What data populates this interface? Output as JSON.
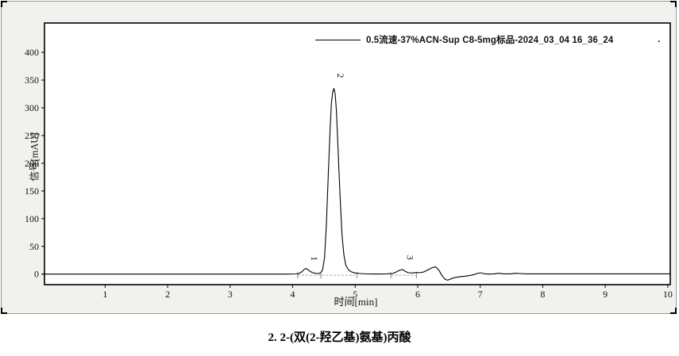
{
  "figure": {
    "caption": "2. 2-(双(2-羟乙基)氨基)丙酸"
  },
  "colors": {
    "panel_bg": "#f1f1ee",
    "plot_bg": "#ffffff",
    "plot_border": "#000000",
    "trace": "#000000",
    "baseline_dash": "#a8a8a8",
    "integration_mark": "#8a8a8a",
    "text": "#111111"
  },
  "chart_data": {
    "type": "line",
    "title": "",
    "xlabel": "时间[min]",
    "ylabel": "信号[mAU]",
    "xlim": [
      0.03,
      10.04
    ],
    "ylim": [
      -19,
      453
    ],
    "x_ticks": [
      1,
      2,
      3,
      4,
      5,
      6,
      7,
      8,
      9,
      10
    ],
    "y_ticks": [
      0,
      50,
      100,
      150,
      200,
      250,
      300,
      350,
      400
    ],
    "grid": "off",
    "legend": {
      "position": "top-right-inside",
      "label": "0.5流速-37%ACN-Sup C8-5mg标品-2024_03_04 16_36_24",
      "suffix_dot": "."
    },
    "series": [
      {
        "name": "0.5流速-37%ACN-Sup C8-5mg标品-2024_03_04 16_36_24",
        "color": "#000000",
        "points": [
          [
            0,
            0
          ],
          [
            0.5,
            0
          ],
          [
            1,
            0
          ],
          [
            1.5,
            0
          ],
          [
            2,
            0
          ],
          [
            2.5,
            0
          ],
          [
            3,
            0
          ],
          [
            3.5,
            0
          ],
          [
            3.9,
            0
          ],
          [
            4.05,
            0.3
          ],
          [
            4.1,
            1
          ],
          [
            4.15,
            4.5
          ],
          [
            4.19,
            9
          ],
          [
            4.22,
            10
          ],
          [
            4.26,
            6.5
          ],
          [
            4.31,
            3
          ],
          [
            4.36,
            1.5
          ],
          [
            4.41,
            1
          ],
          [
            4.45,
            2.5
          ],
          [
            4.48,
            8
          ],
          [
            4.51,
            30
          ],
          [
            4.54,
            90
          ],
          [
            4.57,
            180
          ],
          [
            4.6,
            265
          ],
          [
            4.62,
            308
          ],
          [
            4.64,
            328
          ],
          [
            4.66,
            335
          ],
          [
            4.68,
            324
          ],
          [
            4.7,
            295
          ],
          [
            4.73,
            215
          ],
          [
            4.76,
            135
          ],
          [
            4.79,
            70
          ],
          [
            4.82,
            34
          ],
          [
            4.85,
            16
          ],
          [
            4.89,
            8
          ],
          [
            4.94,
            4
          ],
          [
            5.0,
            2
          ],
          [
            5.08,
            1
          ],
          [
            5.2,
            0.3
          ],
          [
            5.35,
            0.2
          ],
          [
            5.5,
            0.5
          ],
          [
            5.6,
            1
          ],
          [
            5.66,
            4
          ],
          [
            5.72,
            7.5
          ],
          [
            5.76,
            8
          ],
          [
            5.8,
            5
          ],
          [
            5.85,
            2.5
          ],
          [
            5.92,
            2
          ],
          [
            5.98,
            3
          ],
          [
            6.03,
            2.5
          ],
          [
            6.1,
            4
          ],
          [
            6.17,
            8
          ],
          [
            6.24,
            12
          ],
          [
            6.29,
            13
          ],
          [
            6.34,
            7
          ],
          [
            6.39,
            -3
          ],
          [
            6.44,
            -9.5
          ],
          [
            6.48,
            -11
          ],
          [
            6.53,
            -8.5
          ],
          [
            6.6,
            -6
          ],
          [
            6.68,
            -4.5
          ],
          [
            6.78,
            -3.5
          ],
          [
            6.88,
            -1.5
          ],
          [
            6.95,
            1
          ],
          [
            7.0,
            2.5
          ],
          [
            7.05,
            1
          ],
          [
            7.12,
            0
          ],
          [
            7.22,
            0.5
          ],
          [
            7.3,
            1.5
          ],
          [
            7.38,
            0.5
          ],
          [
            7.48,
            0.5
          ],
          [
            7.56,
            1.5
          ],
          [
            7.64,
            1
          ],
          [
            7.74,
            0.5
          ],
          [
            7.9,
            0.4
          ],
          [
            8.2,
            0.4
          ],
          [
            9.0,
            0.4
          ],
          [
            10.04,
            0.4
          ]
        ]
      }
    ],
    "peaks": [
      {
        "label": "1",
        "t": 4.3,
        "v": 28
      },
      {
        "label": "2",
        "t": 4.72,
        "v": 358
      },
      {
        "label": "3",
        "t": 5.83,
        "v": 30
      }
    ],
    "baseline_segments": [
      {
        "t1": 4.08,
        "t2": 5.03,
        "v": -2
      },
      {
        "t1": 5.57,
        "t2": 5.98,
        "v": -2
      }
    ],
    "integration_marks": [
      {
        "t": 4.08,
        "v": -2
      },
      {
        "t": 4.45,
        "v": -2
      },
      {
        "t": 5.03,
        "v": -2
      },
      {
        "t": 5.57,
        "v": -2
      },
      {
        "t": 5.98,
        "v": -2
      }
    ]
  }
}
